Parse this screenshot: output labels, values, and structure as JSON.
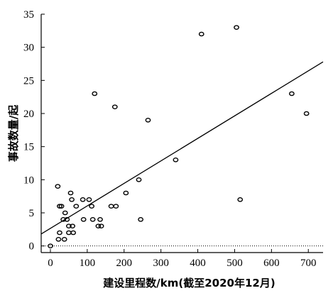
{
  "chart_data": {
    "type": "scatter",
    "xlabel": "建设里程数/km(截至2020年12月)",
    "ylabel": "事故数量/起",
    "xlim": [
      -25,
      740
    ],
    "ylim": [
      -1,
      35
    ],
    "xticks": [
      0,
      100,
      200,
      300,
      400,
      500,
      600,
      700
    ],
    "yticks": [
      0,
      5,
      10,
      15,
      20,
      25,
      30,
      35
    ],
    "grid": false,
    "legend": "none",
    "colors": {
      "marker": "#000000",
      "line": "#000000",
      "zero_line": "#000000"
    },
    "points": [
      {
        "x": 0,
        "y": 0
      },
      {
        "x": 20,
        "y": 9
      },
      {
        "x": 25,
        "y": 6
      },
      {
        "x": 30,
        "y": 6
      },
      {
        "x": 35,
        "y": 4
      },
      {
        "x": 40,
        "y": 5
      },
      {
        "x": 45,
        "y": 4
      },
      {
        "x": 50,
        "y": 3
      },
      {
        "x": 55,
        "y": 8
      },
      {
        "x": 58,
        "y": 7
      },
      {
        "x": 60,
        "y": 3
      },
      {
        "x": 62,
        "y": 2
      },
      {
        "x": 50,
        "y": 2
      },
      {
        "x": 25,
        "y": 2
      },
      {
        "x": 22,
        "y": 1
      },
      {
        "x": 38,
        "y": 1
      },
      {
        "x": 70,
        "y": 6
      },
      {
        "x": 88,
        "y": 7
      },
      {
        "x": 90,
        "y": 4
      },
      {
        "x": 105,
        "y": 7
      },
      {
        "x": 112,
        "y": 6
      },
      {
        "x": 115,
        "y": 4
      },
      {
        "x": 120,
        "y": 23
      },
      {
        "x": 130,
        "y": 3
      },
      {
        "x": 135,
        "y": 4
      },
      {
        "x": 138,
        "y": 3
      },
      {
        "x": 165,
        "y": 6
      },
      {
        "x": 175,
        "y": 21
      },
      {
        "x": 178,
        "y": 6
      },
      {
        "x": 205,
        "y": 8
      },
      {
        "x": 240,
        "y": 10
      },
      {
        "x": 245,
        "y": 4
      },
      {
        "x": 265,
        "y": 19
      },
      {
        "x": 340,
        "y": 13
      },
      {
        "x": 410,
        "y": 32
      },
      {
        "x": 505,
        "y": 33
      },
      {
        "x": 515,
        "y": 7
      },
      {
        "x": 655,
        "y": 23
      },
      {
        "x": 695,
        "y": 20
      }
    ],
    "fit_line": {
      "x": [
        -25,
        740
      ],
      "y": [
        1.8,
        27.8
      ]
    },
    "reference_line": {
      "y": 0,
      "style": "dotted"
    }
  }
}
